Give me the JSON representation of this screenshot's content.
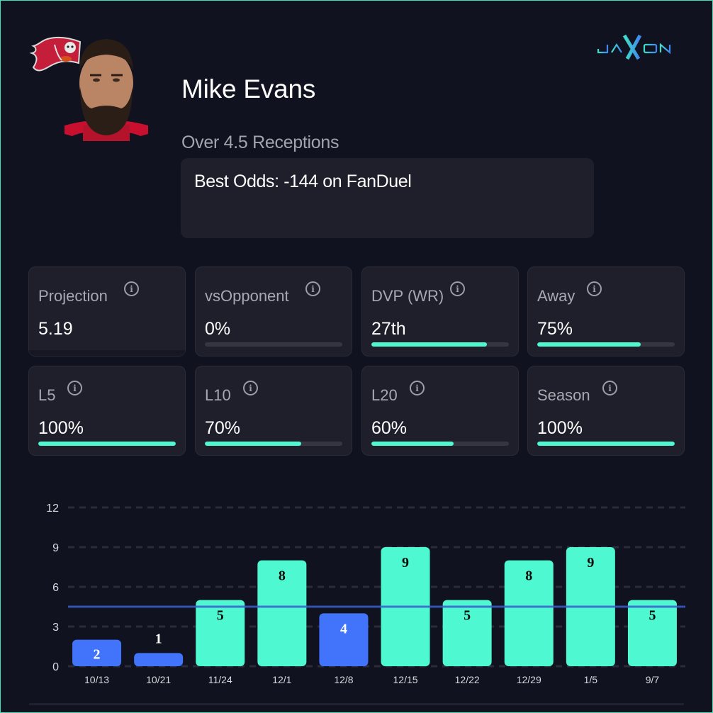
{
  "brand": {
    "logo_text": "JAXON"
  },
  "player": {
    "name": "Mike Evans",
    "team_logo": "buccaneers-flag-logo",
    "headshot": "player-headshot"
  },
  "prop": {
    "line": "Over 4.5 Receptions",
    "best_odds": "Best Odds: -144 on FanDuel"
  },
  "stats": [
    {
      "label": "Projection",
      "value": "5.19",
      "bar": null
    },
    {
      "label": "vsOpponent",
      "value": "0%",
      "bar": 0
    },
    {
      "label": "DVP (WR)",
      "value": "27th",
      "bar": 0.84
    },
    {
      "label": "Away",
      "value": "75%",
      "bar": 0.75
    },
    {
      "label": "L5",
      "value": "100%",
      "bar": 1.0
    },
    {
      "label": "L10",
      "value": "70%",
      "bar": 0.7
    },
    {
      "label": "L20",
      "value": "60%",
      "bar": 0.6
    },
    {
      "label": "Season",
      "value": "100%",
      "bar": 1.0
    }
  ],
  "colors": {
    "hit": "#4ef8d0",
    "miss": "#4274fb",
    "line": "#3a5fcd",
    "grid": "#2b2c38",
    "accent": "#3fe0b6"
  },
  "chart_data": {
    "type": "bar",
    "title": "",
    "xlabel": "",
    "ylabel": "",
    "categories": [
      "10/13",
      "10/21",
      "11/24",
      "12/1",
      "12/8",
      "12/15",
      "12/22",
      "12/29",
      "1/5",
      "9/7"
    ],
    "values": [
      2,
      1,
      5,
      8,
      4,
      9,
      5,
      8,
      9,
      5
    ],
    "labels": [
      "2",
      "1",
      "5",
      "8",
      "4",
      "9",
      "5",
      "8",
      "9",
      "5"
    ],
    "yticks": [
      "0",
      "3",
      "6",
      "9",
      "12"
    ],
    "ylim": [
      0,
      12
    ],
    "threshold": 4.5,
    "grid": true
  }
}
